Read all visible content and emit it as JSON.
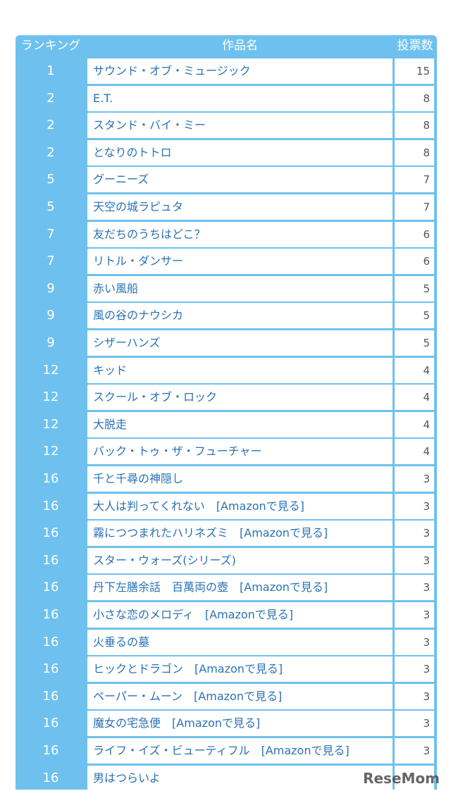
{
  "header": {
    "rank": "ランキング",
    "title": "作品名",
    "votes": "投票数"
  },
  "link_text": "[Amazonで見る]",
  "rows": [
    {
      "rank": 1,
      "title": "サウンド・オブ・ミュージック",
      "votes": 15
    },
    {
      "rank": 2,
      "title": "E.T.",
      "votes": 8
    },
    {
      "rank": 2,
      "title": "スタンド・バイ・ミー",
      "votes": 8
    },
    {
      "rank": 2,
      "title": "となりのトトロ",
      "votes": 8
    },
    {
      "rank": 5,
      "title": "グーニーズ",
      "votes": 7
    },
    {
      "rank": 5,
      "title": "天空の城ラピュタ",
      "votes": 7
    },
    {
      "rank": 7,
      "title": "友だちのうちはどこ？",
      "votes": 6
    },
    {
      "rank": 7,
      "title": "リトル・ダンサー",
      "votes": 6
    },
    {
      "rank": 9,
      "title": "赤い風船",
      "votes": 5
    },
    {
      "rank": 9,
      "title": "風の谷のナウシカ",
      "votes": 5
    },
    {
      "rank": 9,
      "title": "シザーハンズ",
      "votes": 5
    },
    {
      "rank": 12,
      "title": "キッド",
      "votes": 4
    },
    {
      "rank": 12,
      "title": "スクール・オブ・ロック",
      "votes": 4
    },
    {
      "rank": 12,
      "title": "大脱走",
      "votes": 4
    },
    {
      "rank": 12,
      "title": "バック・トゥ・ザ・フューチャー",
      "votes": 4
    },
    {
      "rank": 16,
      "title": "千と千尋の神隠し",
      "votes": 3
    },
    {
      "rank": 16,
      "title": "大人は判ってくれない",
      "amazon": true,
      "votes": 3
    },
    {
      "rank": 16,
      "title": "霧につつまれたハリネズミ",
      "amazon": true,
      "votes": 3
    },
    {
      "rank": 16,
      "title": "スター・ウォーズ(シリーズ)",
      "votes": 3
    },
    {
      "rank": 16,
      "title": "丹下左膳余話　百萬両の壺",
      "amazon": true,
      "votes": 3
    },
    {
      "rank": 16,
      "title": "小さな恋のメロディ",
      "amazon": true,
      "votes": 3
    },
    {
      "rank": 16,
      "title": "火垂るの墓",
      "votes": 3
    },
    {
      "rank": 16,
      "title": "ヒックとドラゴン",
      "amazon": true,
      "votes": 3
    },
    {
      "rank": 16,
      "title": "ペーパー・ムーン",
      "amazon": true,
      "votes": 3
    },
    {
      "rank": 16,
      "title": "魔女の宅急便",
      "amazon": true,
      "votes": 3
    },
    {
      "rank": 16,
      "title": "ライフ・イズ・ビューティフル",
      "amazon": true,
      "votes": 3
    },
    {
      "rank": 16,
      "title": "男はつらいよ"
    }
  ],
  "watermark": "ReseMom"
}
